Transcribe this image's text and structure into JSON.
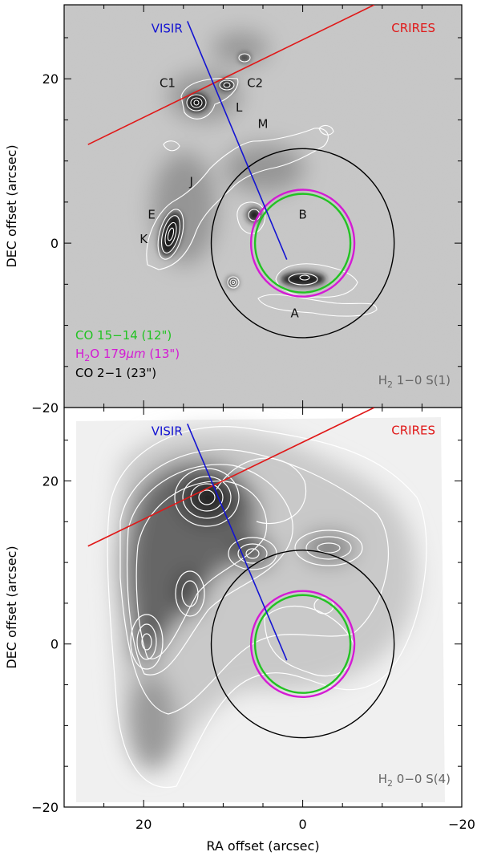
{
  "figure": {
    "shared_x_axis": {
      "label": "RA offset (arcsec)",
      "ticks": [
        20,
        0,
        -20
      ],
      "lim": [
        30,
        -20
      ]
    },
    "panels": [
      {
        "id": "top",
        "y_label": "DEC offset (arcsec)",
        "y_ticks": [
          20,
          0,
          -20
        ],
        "y_lim": [
          -20,
          29
        ],
        "map_label": "H$_2$ 1–0 S(1)",
        "map_label_parts": [
          "H",
          "2",
          " 1−0 S(1)"
        ],
        "knot_labels": [
          {
            "text": "C1",
            "x": 17,
            "y": 19
          },
          {
            "text": "C2",
            "x": 6,
            "y": 19
          },
          {
            "text": "L",
            "x": 8,
            "y": 16
          },
          {
            "text": "M",
            "x": 5,
            "y": 14
          },
          {
            "text": "J",
            "x": 14,
            "y": 7
          },
          {
            "text": "E",
            "x": 19,
            "y": 3
          },
          {
            "text": "K",
            "x": 20,
            "y": 0
          },
          {
            "text": "B",
            "x": 0,
            "y": 3
          },
          {
            "text": "A",
            "x": 1,
            "y": -9
          }
        ],
        "legend": [
          {
            "text": "CO 15−14 (12\")",
            "color": "#22c322"
          },
          {
            "text_parts": [
              "H",
              "2",
              "O 179",
              "μm",
              " (13\")"
            ],
            "color": "#d41ad4"
          },
          {
            "text": "CO 2−1 (23\")",
            "color": "#000000"
          }
        ]
      },
      {
        "id": "bottom",
        "y_label": "DEC offset (arcsec)",
        "y_ticks": [
          20,
          0,
          -20
        ],
        "y_lim": [
          -20,
          29
        ],
        "map_label_parts": [
          "H",
          "2",
          " 0−0 S(4)"
        ]
      }
    ],
    "overlays": {
      "visir_label": "VISIR",
      "visir_color": "#1414d2",
      "visir_line": [
        [
          14.5,
          27.0
        ],
        [
          2.0,
          -2.0
        ]
      ],
      "crires_label": "CRIRES",
      "crires_color": "#e01818",
      "crires_line": [
        [
          27.0,
          12.0
        ],
        [
          -9.0,
          29.0
        ]
      ],
      "circles": [
        {
          "name": "CO 2-1 beam",
          "center": [
            0,
            0
          ],
          "radius": 11.5,
          "color": "#000000"
        },
        {
          "name": "H2O 179um beam",
          "center": [
            0,
            0
          ],
          "radius": 6.5,
          "color": "#d41ad4"
        },
        {
          "name": "CO 15-14 beam",
          "center": [
            0,
            0
          ],
          "radius": 6.0,
          "color": "#22c322"
        }
      ]
    }
  }
}
